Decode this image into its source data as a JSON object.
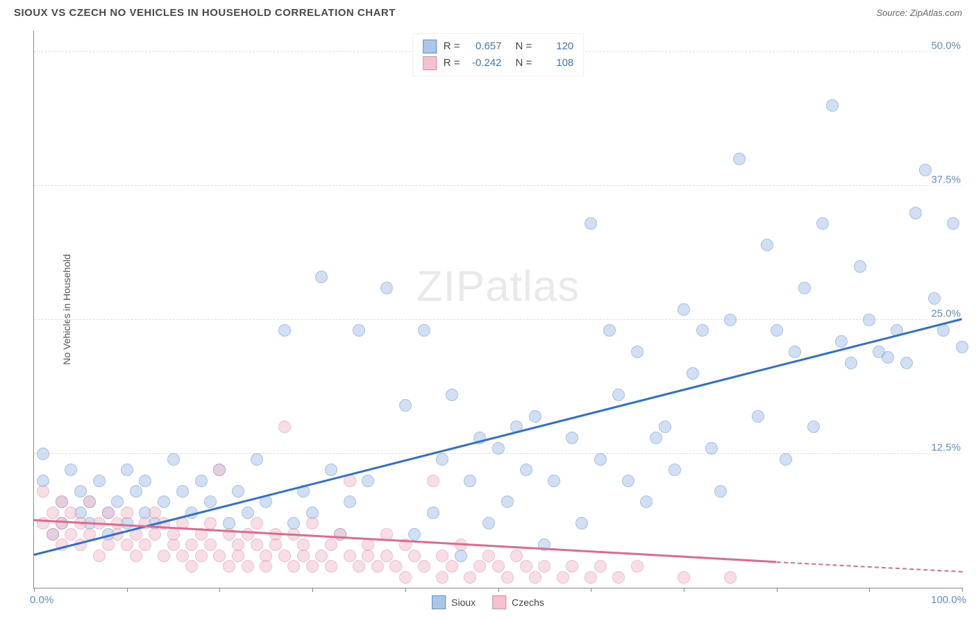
{
  "title": "SIOUX VS CZECH NO VEHICLES IN HOUSEHOLD CORRELATION CHART",
  "source_label": "Source: ZipAtlas.com",
  "ylabel": "No Vehicles in Household",
  "watermark_a": "ZIP",
  "watermark_b": "atlas",
  "chart": {
    "type": "scatter",
    "xlim": [
      0,
      100
    ],
    "ylim": [
      0,
      52
    ],
    "x_ticks": [
      0,
      10,
      20,
      30,
      40,
      50,
      60,
      70,
      80,
      90,
      100
    ],
    "y_gridlines": [
      12.5,
      25.0,
      37.5,
      50.0
    ],
    "y_tick_labels": [
      "12.5%",
      "25.0%",
      "37.5%",
      "50.0%"
    ],
    "x_axis_left_label": "0.0%",
    "x_axis_right_label": "100.0%",
    "background_color": "#ffffff",
    "grid_color": "#dddddd",
    "axis_color": "#888888",
    "marker_radius": 9,
    "marker_opacity": 0.55,
    "series": [
      {
        "name": "Sioux",
        "color_fill": "#aac6ea",
        "color_stroke": "#5b8fd6",
        "R": "0.657",
        "N": "120",
        "trend": {
          "x1": 0,
          "y1": 3.0,
          "x2": 100,
          "y2": 25.0,
          "color": "#2f6fd0",
          "width": 3
        },
        "points": [
          [
            1,
            10
          ],
          [
            1,
            12.5
          ],
          [
            2,
            5
          ],
          [
            3,
            8
          ],
          [
            3,
            6
          ],
          [
            4,
            11
          ],
          [
            5,
            7
          ],
          [
            5,
            9
          ],
          [
            6,
            6
          ],
          [
            6,
            8
          ],
          [
            7,
            10
          ],
          [
            8,
            7
          ],
          [
            8,
            5
          ],
          [
            9,
            8
          ],
          [
            10,
            11
          ],
          [
            10,
            6
          ],
          [
            11,
            9
          ],
          [
            12,
            7
          ],
          [
            12,
            10
          ],
          [
            13,
            6
          ],
          [
            14,
            8
          ],
          [
            15,
            12
          ],
          [
            16,
            9
          ],
          [
            17,
            7
          ],
          [
            18,
            10
          ],
          [
            19,
            8
          ],
          [
            20,
            11
          ],
          [
            21,
            6
          ],
          [
            22,
            9
          ],
          [
            23,
            7
          ],
          [
            24,
            12
          ],
          [
            25,
            8
          ],
          [
            27,
            24
          ],
          [
            28,
            6
          ],
          [
            29,
            9
          ],
          [
            30,
            7
          ],
          [
            31,
            29
          ],
          [
            32,
            11
          ],
          [
            33,
            5
          ],
          [
            34,
            8
          ],
          [
            35,
            24
          ],
          [
            36,
            10
          ],
          [
            38,
            28
          ],
          [
            40,
            17
          ],
          [
            41,
            5
          ],
          [
            42,
            24
          ],
          [
            43,
            7
          ],
          [
            44,
            12
          ],
          [
            45,
            18
          ],
          [
            46,
            3
          ],
          [
            47,
            10
          ],
          [
            48,
            14
          ],
          [
            49,
            6
          ],
          [
            50,
            13
          ],
          [
            51,
            8
          ],
          [
            52,
            15
          ],
          [
            53,
            11
          ],
          [
            54,
            16
          ],
          [
            55,
            4
          ],
          [
            56,
            10
          ],
          [
            58,
            14
          ],
          [
            59,
            6
          ],
          [
            60,
            34
          ],
          [
            61,
            12
          ],
          [
            62,
            24
          ],
          [
            63,
            18
          ],
          [
            64,
            10
          ],
          [
            65,
            22
          ],
          [
            66,
            8
          ],
          [
            67,
            14
          ],
          [
            68,
            15
          ],
          [
            69,
            11
          ],
          [
            70,
            26
          ],
          [
            71,
            20
          ],
          [
            72,
            24
          ],
          [
            73,
            13
          ],
          [
            74,
            9
          ],
          [
            75,
            25
          ],
          [
            76,
            40
          ],
          [
            78,
            16
          ],
          [
            79,
            32
          ],
          [
            80,
            24
          ],
          [
            81,
            12
          ],
          [
            82,
            22
          ],
          [
            83,
            28
          ],
          [
            84,
            15
          ],
          [
            85,
            34
          ],
          [
            86,
            45
          ],
          [
            87,
            23
          ],
          [
            88,
            21
          ],
          [
            89,
            30
          ],
          [
            90,
            25
          ],
          [
            91,
            22
          ],
          [
            92,
            21.5
          ],
          [
            93,
            24
          ],
          [
            94,
            21
          ],
          [
            95,
            35
          ],
          [
            96,
            39
          ],
          [
            97,
            27
          ],
          [
            98,
            24
          ],
          [
            99,
            34
          ],
          [
            100,
            22.5
          ]
        ]
      },
      {
        "name": "Czechs",
        "color_fill": "#f4c2cf",
        "color_stroke": "#e38aa3",
        "R": "-0.242",
        "N": "108",
        "trend": {
          "x1": 0,
          "y1": 6.2,
          "x2": 80,
          "y2": 2.3,
          "color": "#e06a8a",
          "width": 3,
          "dash_to_x": 100,
          "dash_to_y": 1.4
        },
        "points": [
          [
            1,
            9
          ],
          [
            1,
            6
          ],
          [
            2,
            7
          ],
          [
            2,
            5
          ],
          [
            3,
            8
          ],
          [
            3,
            6
          ],
          [
            3,
            4
          ],
          [
            4,
            7
          ],
          [
            4,
            5
          ],
          [
            5,
            6
          ],
          [
            5,
            4
          ],
          [
            6,
            8
          ],
          [
            6,
            5
          ],
          [
            7,
            6
          ],
          [
            7,
            3
          ],
          [
            8,
            7
          ],
          [
            8,
            4
          ],
          [
            9,
            5
          ],
          [
            9,
            6
          ],
          [
            10,
            4
          ],
          [
            10,
            7
          ],
          [
            11,
            5
          ],
          [
            11,
            3
          ],
          [
            12,
            6
          ],
          [
            12,
            4
          ],
          [
            13,
            5
          ],
          [
            13,
            7
          ],
          [
            14,
            3
          ],
          [
            14,
            6
          ],
          [
            15,
            4
          ],
          [
            15,
            5
          ],
          [
            16,
            3
          ],
          [
            16,
            6
          ],
          [
            17,
            4
          ],
          [
            17,
            2
          ],
          [
            18,
            5
          ],
          [
            18,
            3
          ],
          [
            19,
            6
          ],
          [
            19,
            4
          ],
          [
            20,
            11
          ],
          [
            20,
            3
          ],
          [
            21,
            5
          ],
          [
            21,
            2
          ],
          [
            22,
            4
          ],
          [
            22,
            3
          ],
          [
            23,
            5
          ],
          [
            23,
            2
          ],
          [
            24,
            4
          ],
          [
            24,
            6
          ],
          [
            25,
            3
          ],
          [
            25,
            2
          ],
          [
            26,
            5
          ],
          [
            26,
            4
          ],
          [
            27,
            3
          ],
          [
            27,
            15
          ],
          [
            28,
            2
          ],
          [
            28,
            5
          ],
          [
            29,
            3
          ],
          [
            29,
            4
          ],
          [
            30,
            2
          ],
          [
            30,
            6
          ],
          [
            31,
            3
          ],
          [
            32,
            4
          ],
          [
            32,
            2
          ],
          [
            33,
            5
          ],
          [
            34,
            3
          ],
          [
            34,
            10
          ],
          [
            35,
            2
          ],
          [
            36,
            4
          ],
          [
            36,
            3
          ],
          [
            37,
            2
          ],
          [
            38,
            5
          ],
          [
            38,
            3
          ],
          [
            39,
            2
          ],
          [
            40,
            4
          ],
          [
            40,
            1
          ],
          [
            41,
            3
          ],
          [
            42,
            2
          ],
          [
            43,
            10
          ],
          [
            44,
            1
          ],
          [
            44,
            3
          ],
          [
            45,
            2
          ],
          [
            46,
            4
          ],
          [
            47,
            1
          ],
          [
            48,
            2
          ],
          [
            49,
            3
          ],
          [
            50,
            2
          ],
          [
            51,
            1
          ],
          [
            52,
            3
          ],
          [
            53,
            2
          ],
          [
            54,
            1
          ],
          [
            55,
            2
          ],
          [
            57,
            1
          ],
          [
            58,
            2
          ],
          [
            60,
            1
          ],
          [
            61,
            2
          ],
          [
            63,
            1
          ],
          [
            65,
            2
          ],
          [
            70,
            1
          ],
          [
            75,
            1
          ]
        ]
      }
    ]
  },
  "stats_box": {
    "R_label": "R =",
    "N_label": "N ="
  },
  "legend": {
    "items": [
      "Sioux",
      "Czechs"
    ]
  }
}
